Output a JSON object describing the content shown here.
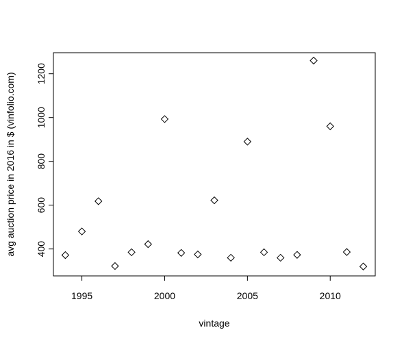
{
  "chart_data": {
    "type": "scatter",
    "title": "",
    "xlabel": "vintage",
    "ylabel": "avg auction price in 2016 in $ (vinfolio.com)",
    "xlim": [
      1993.28,
      2012.72
    ],
    "ylim": [
      277,
      1296
    ],
    "xticks": [
      1995,
      2000,
      2005,
      2010
    ],
    "yticks": [
      400,
      600,
      800,
      1000,
      1200
    ],
    "grid": false,
    "marker": "diamond-open",
    "points": [
      {
        "x": 1994,
        "y": 372
      },
      {
        "x": 1995,
        "y": 480
      },
      {
        "x": 1996,
        "y": 618
      },
      {
        "x": 1997,
        "y": 322
      },
      {
        "x": 1998,
        "y": 385
      },
      {
        "x": 1999,
        "y": 422
      },
      {
        "x": 2000,
        "y": 993
      },
      {
        "x": 2001,
        "y": 382
      },
      {
        "x": 2002,
        "y": 375
      },
      {
        "x": 2003,
        "y": 622
      },
      {
        "x": 2004,
        "y": 360
      },
      {
        "x": 2005,
        "y": 890
      },
      {
        "x": 2006,
        "y": 385
      },
      {
        "x": 2007,
        "y": 360
      },
      {
        "x": 2008,
        "y": 373
      },
      {
        "x": 2009,
        "y": 1260
      },
      {
        "x": 2010,
        "y": 960
      },
      {
        "x": 2011,
        "y": 386
      },
      {
        "x": 2012,
        "y": 320
      }
    ]
  }
}
